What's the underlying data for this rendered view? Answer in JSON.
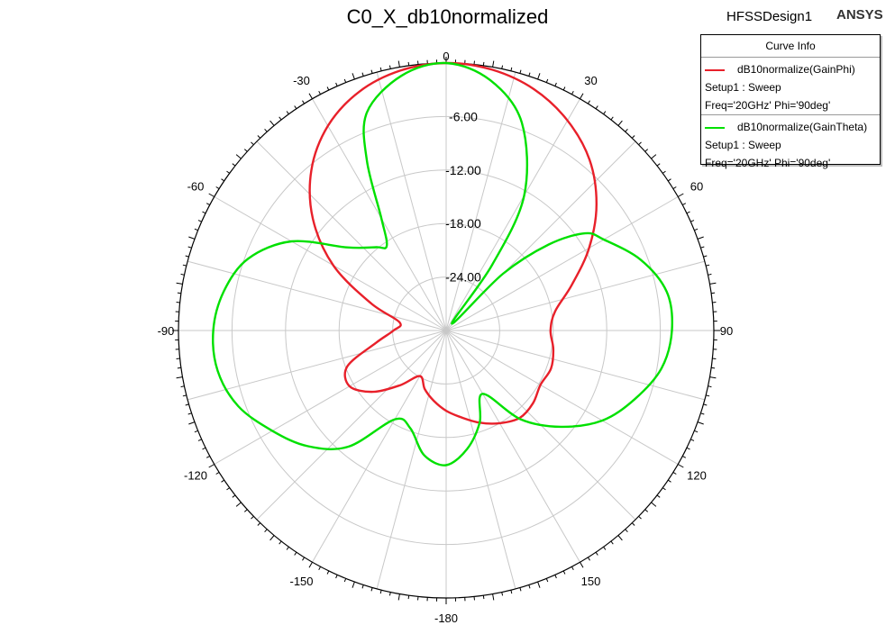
{
  "title": "C0_X_db10normalized",
  "design_name": "HFSSDesign1",
  "brand": "ANSYS",
  "legend": {
    "header": "Curve Info",
    "entries": [
      {
        "name": "dB10normalize(GainPhi)",
        "line1": "Setup1 : Sweep",
        "line2": "Freq='20GHz' Phi='90deg'",
        "color": "#e8202a"
      },
      {
        "name": "dB10normalize(GainTheta)",
        "line1": "Setup1 : Sweep",
        "line2": "Freq='20GHz' Phi='90deg'",
        "color": "#00e000"
      }
    ]
  },
  "chart_data": {
    "type": "line",
    "subtype": "polar",
    "title": "C0_X_db10normalized",
    "angle_unit": "deg",
    "angle_zero": "top",
    "angle_direction": "clockwise",
    "angle_ticks": [
      0,
      30,
      60,
      90,
      120,
      150,
      -180,
      -150,
      -120,
      -90,
      -60,
      -30
    ],
    "radial_range": [
      -30,
      0
    ],
    "radial_ticks": [
      -6,
      -12,
      -18,
      -24
    ],
    "radial_tick_labels": [
      "-6.00",
      "-12.00",
      "-18.00",
      "-24.00"
    ],
    "grid": true,
    "series": [
      {
        "name": "dB10normalize(GainPhi)",
        "color": "#e8202a",
        "theta": [
          0,
          10,
          20,
          30,
          40,
          50,
          60,
          70,
          80,
          90,
          100,
          110,
          120,
          130,
          140,
          150,
          160,
          170,
          180,
          -170,
          -160,
          -150,
          -140,
          -130,
          -120,
          -110,
          -100,
          -90,
          -80,
          -70,
          -60,
          -50,
          -40,
          -30,
          -20,
          -10
        ],
        "r": [
          0,
          -0.3,
          -1.2,
          -2.8,
          -5,
          -8,
          -11.5,
          -15,
          -17.6,
          -18.3,
          -17.8,
          -17.5,
          -17.8,
          -17.3,
          -17.2,
          -18,
          -19,
          -20.1,
          -21,
          -22,
          -23,
          -24.1,
          -22,
          -19.3,
          -17.5,
          -18.2,
          -22,
          -24.1,
          -24.7,
          -21,
          -15.4,
          -10.5,
          -6.5,
          -3.5,
          -1.5,
          -0.4
        ]
      },
      {
        "name": "dB10normalize(GainTheta)",
        "color": "#00e000",
        "theta": [
          0,
          10,
          20,
          30,
          35,
          40,
          45,
          50,
          55,
          60,
          70,
          80,
          90,
          100,
          110,
          120,
          130,
          140,
          150,
          160,
          170,
          180,
          -170,
          -160,
          -150,
          -140,
          -130,
          -120,
          -110,
          -100,
          -90,
          -80,
          -70,
          -60,
          -50,
          -40,
          -35,
          -30,
          -25,
          -20,
          -10
        ],
        "r": [
          0,
          -1.5,
          -5.2,
          -12.5,
          -21,
          -29,
          -21,
          -15,
          -11,
          -9.6,
          -6.8,
          -4.9,
          -4.7,
          -5.5,
          -7.5,
          -9.8,
          -13.2,
          -17,
          -21.8,
          -19,
          -16.5,
          -14.9,
          -15.8,
          -18.3,
          -18.5,
          -13,
          -9.8,
          -7.5,
          -5.2,
          -4,
          -3.9,
          -4.7,
          -6.4,
          -10,
          -15.5,
          -17.8,
          -18.4,
          -15.5,
          -9,
          -4,
          -1
        ]
      }
    ]
  }
}
